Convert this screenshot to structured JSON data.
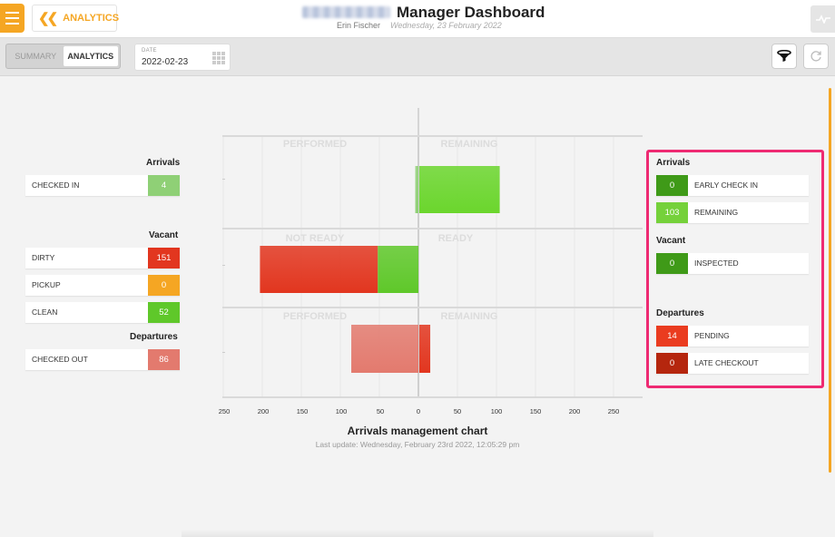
{
  "header": {
    "back_label": "ANALYTICS",
    "title": "Manager Dashboard",
    "user": "Erin Fischer",
    "date": "Wednesday, 23 February 2022"
  },
  "toolbar": {
    "tabs": [
      "SUMMARY",
      "ANALYTICS"
    ],
    "active_tab": "ANALYTICS",
    "date_label": "DATE",
    "date_value": "2022-02-23"
  },
  "left": {
    "arrivals_title": "Arrivals",
    "vacant_title": "Vacant",
    "departures_title": "Departures",
    "items": [
      {
        "label": "CHECKED IN",
        "value": "4",
        "color": "#8fd076"
      },
      {
        "label": "DIRTY",
        "value": "151",
        "color": "#e2361f"
      },
      {
        "label": "PICKUP",
        "value": "0",
        "color": "#f5a623"
      },
      {
        "label": "CLEAN",
        "value": "52",
        "color": "#5fc82a"
      },
      {
        "label": "CHECKED OUT",
        "value": "86",
        "color": "#e37a6e"
      }
    ]
  },
  "right": {
    "arrivals_title": "Arrivals",
    "vacant_title": "Vacant",
    "departures_title": "Departures",
    "items": [
      {
        "label": "EARLY CHECK IN",
        "value": "0",
        "color": "#3f9a18"
      },
      {
        "label": "REMAINING",
        "value": "103",
        "color": "#75d13a"
      },
      {
        "label": "INSPECTED",
        "value": "0",
        "color": "#3f9a18"
      },
      {
        "label": "PENDING",
        "value": "14",
        "color": "#ea3c20"
      },
      {
        "label": "LATE CHECKOUT",
        "value": "0",
        "color": "#b5260e"
      }
    ]
  },
  "chart": {
    "title": "Arrivals management chart",
    "last_update": "Last update: Wednesday, February 23rd 2022, 12:05:29 pm"
  },
  "chart_data": {
    "type": "bar",
    "orientation": "horizontal-diverging",
    "xlim": [
      -250,
      250
    ],
    "ticks": [
      250,
      200,
      150,
      100,
      50,
      0,
      50,
      100,
      150,
      200,
      250
    ],
    "panels": [
      {
        "left_label": "PERFORMED",
        "right_label": "REMAINING",
        "bars": [
          {
            "name": "Checked in",
            "side": "left",
            "value": 4,
            "color": "#8fd076"
          },
          {
            "name": "Remaining arrivals",
            "side": "right",
            "value": 103,
            "color": "#6bd62d"
          }
        ]
      },
      {
        "left_label": "NOT READY",
        "right_label": "READY",
        "bars": [
          {
            "name": "Dirty",
            "side": "left",
            "value": 151,
            "color": "#e2361f"
          },
          {
            "name": "Clean",
            "side": "left",
            "value": 52,
            "color": "#5fc82a"
          }
        ]
      },
      {
        "left_label": "PERFORMED",
        "right_label": "REMAINING",
        "bars": [
          {
            "name": "Checked out",
            "side": "left",
            "value": 86,
            "color": "#e37a6e"
          },
          {
            "name": "Pending departures",
            "side": "right",
            "value": 14,
            "color": "#e2361f"
          }
        ]
      }
    ]
  }
}
